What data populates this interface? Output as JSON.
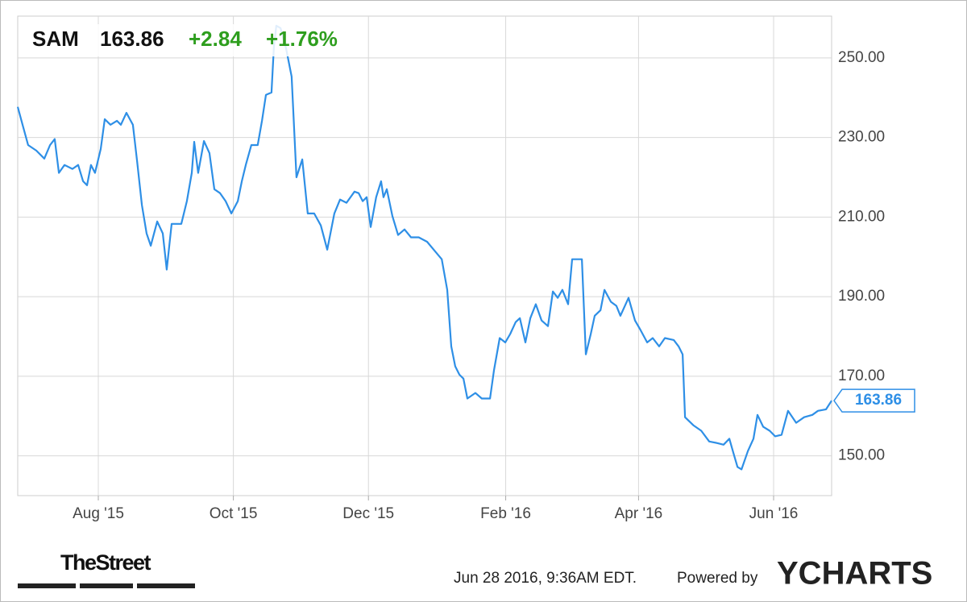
{
  "chart_data": {
    "type": "line",
    "price": "163.86",
    "change": "+2.84",
    "change_percent": "+1.76%",
    "xlim": [
      0,
      367.6
    ],
    "ylim": [
      140,
      260.5
    ],
    "xticks": [
      {
        "value": 36.4,
        "label": "Aug '15"
      },
      {
        "value": 97.4,
        "label": "Oct '15"
      },
      {
        "value": 158.4,
        "label": "Dec '15"
      },
      {
        "value": 220.4,
        "label": "Feb '16"
      },
      {
        "value": 280.4,
        "label": "Apr '16"
      },
      {
        "value": 341.4,
        "label": "Jun '16"
      }
    ],
    "yticks": [
      {
        "value": 150,
        "label": "150.00"
      },
      {
        "value": 170,
        "label": "170.00"
      },
      {
        "value": 190,
        "label": "190.00"
      },
      {
        "value": 210,
        "label": "210.00"
      },
      {
        "value": 230,
        "label": "230.00"
      },
      {
        "value": 250,
        "label": "250.00"
      }
    ],
    "grid": true,
    "series": [
      {
        "name": "SAM",
        "color": "#2e8fe6",
        "x": [
          0,
          2.2,
          4.7,
          8.4,
          12.0,
          14.6,
          16.7,
          18.6,
          21.1,
          24.7,
          27.3,
          29.5,
          31.3,
          33.1,
          34.9,
          37.5,
          39.3,
          41.9,
          44.8,
          46.6,
          49.1,
          52.0,
          53.9,
          56.1,
          58.2,
          60.1,
          63.0,
          65.5,
          67.3,
          69.5,
          73.9,
          76.4,
          78.6,
          79.7,
          81.5,
          84.1,
          86.6,
          88.8,
          91.4,
          93.9,
          96.5,
          99.4,
          101.2,
          103.0,
          105.5,
          108.4,
          110.3,
          112.1,
          114.6,
          115.7,
          116.8,
          118.7,
          121.2,
          123.7,
          125.9,
          128.5,
          131.0,
          133.9,
          136.9,
          139.8,
          143.0,
          145.6,
          148.5,
          152.1,
          154.0,
          155.8,
          157.6,
          159.4,
          161.9,
          164.1,
          165.2,
          166.7,
          169.2,
          171.8,
          174.7,
          177.6,
          181.1,
          184.9,
          188.5,
          191.5,
          194.0,
          195.8,
          197.6,
          199.5,
          201.3,
          203.1,
          206.7,
          209.6,
          213.3,
          215.1,
          217.7,
          220.2,
          222.4,
          224.9,
          226.8,
          229.3,
          231.5,
          234.0,
          236.6,
          239.5,
          241.7,
          243.9,
          246.0,
          248.6,
          250.4,
          254.8,
          256.6,
          258.8,
          260.6,
          263.2,
          265.0,
          267.9,
          270.4,
          272.2,
          275.9,
          278.8,
          281.3,
          284.3,
          286.8,
          289.7,
          292.3,
          296.3,
          298.5,
          300.3,
          301.4,
          305.1,
          308.7,
          312.3,
          315.9,
          318.8,
          321.4,
          323.2,
          325.1,
          326.9,
          329.8,
          332.3,
          334.1,
          336.7,
          339.6,
          342.1,
          345.0,
          347.9,
          351.6,
          355.2,
          358.9,
          361.4,
          365.1,
          367.6
        ],
        "values": [
          237.7,
          233.2,
          228.1,
          226.7,
          224.7,
          228.1,
          229.6,
          221.1,
          223.1,
          222.1,
          223.1,
          219.0,
          218.0,
          223.1,
          221.1,
          227.1,
          234.6,
          233.2,
          234.2,
          233.2,
          236.2,
          233.2,
          224.1,
          213.0,
          205.9,
          202.8,
          208.9,
          205.9,
          196.8,
          208.3,
          208.3,
          214.0,
          221.1,
          228.9,
          221.1,
          229.1,
          226.1,
          217.0,
          216.0,
          214.0,
          210.9,
          214.0,
          219.0,
          223.1,
          228.1,
          228.1,
          234.2,
          240.7,
          241.3,
          252.8,
          258.1,
          257.5,
          252.4,
          245.3,
          220.0,
          224.5,
          210.9,
          210.9,
          207.9,
          201.8,
          210.9,
          214.4,
          213.6,
          216.4,
          216.0,
          214.0,
          215.0,
          207.5,
          215.0,
          219.0,
          215.0,
          217.0,
          210.3,
          205.5,
          206.9,
          204.9,
          204.9,
          203.8,
          201.4,
          199.4,
          191.7,
          177.5,
          172.5,
          170.4,
          169.4,
          164.4,
          165.8,
          164.4,
          164.4,
          171.5,
          179.6,
          178.5,
          180.6,
          183.6,
          184.6,
          178.5,
          184.6,
          188.1,
          184.0,
          182.6,
          191.3,
          189.7,
          191.7,
          188.1,
          199.4,
          199.4,
          175.5,
          180.6,
          185.2,
          186.6,
          191.7,
          188.7,
          187.7,
          185.2,
          189.7,
          184.0,
          181.6,
          178.5,
          179.6,
          177.5,
          179.6,
          179.1,
          177.5,
          175.5,
          159.7,
          157.7,
          156.3,
          153.6,
          153.2,
          152.8,
          154.3,
          150.8,
          147.2,
          146.6,
          151.2,
          154.3,
          160.3,
          157.3,
          156.3,
          154.9,
          155.3,
          161.3,
          158.3,
          159.7,
          160.3,
          161.3,
          161.7,
          163.86
        ]
      }
    ]
  },
  "footer": {
    "source_logo": "TheStreet",
    "timestamp": "Jun 28 2016, 9:36AM EDT.",
    "powered_by": "Powered by",
    "brand": "YCHARTS"
  }
}
